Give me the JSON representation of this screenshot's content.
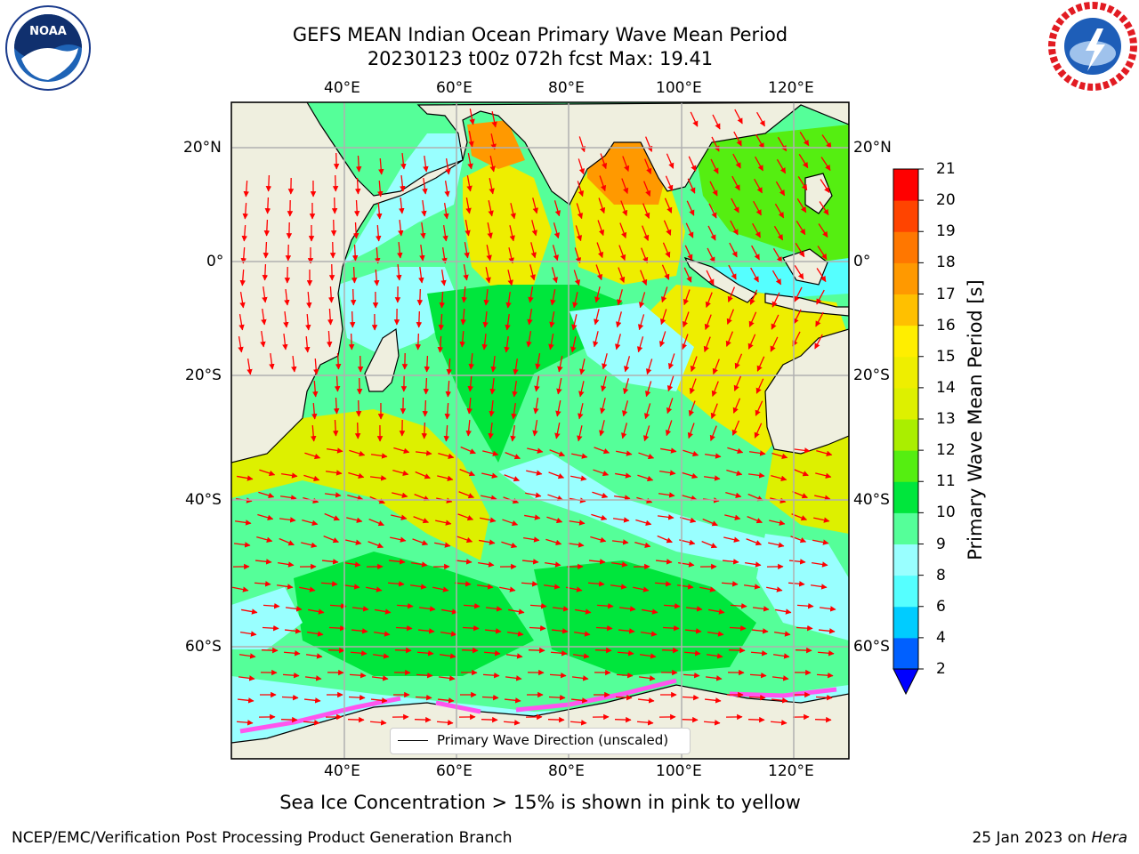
{
  "title": {
    "line1": "GEFS MEAN Indian Ocean Primary Wave Mean Period",
    "line2": "20230123 t00z 072h fcst   Max: 19.41"
  },
  "logos": {
    "left": {
      "text": "NOAA",
      "icon": "noaa-logo"
    },
    "right": {
      "icon": "national-weather-service-logo"
    }
  },
  "map": {
    "lon_labels": [
      "40°E",
      "60°E",
      "80°E",
      "100°E",
      "120°E"
    ],
    "lat_labels": [
      "20°N",
      "0°",
      "20°S",
      "40°S",
      "60°S"
    ],
    "gridlines": true,
    "land_color": "#efefdf",
    "arrow_color": "#ff0000",
    "legend": {
      "label": "Primary Wave Direction (unscaled)",
      "placement": "bottom-center"
    }
  },
  "colorbar": {
    "label": "Primary Wave Mean Period [s]",
    "ticks": [
      "2",
      "4",
      "6",
      "8",
      "9",
      "10",
      "11",
      "12",
      "13",
      "14",
      "15",
      "16",
      "17",
      "18",
      "19",
      "20",
      "21"
    ],
    "colors": [
      "#0060ff",
      "#00ccff",
      "#55ffff",
      "#99ffff",
      "#55ff99",
      "#00e63c",
      "#55ee11",
      "#aaee00",
      "#ddf000",
      "#eeee00",
      "#ffee00",
      "#ffc000",
      "#ff9900",
      "#ff7700",
      "#ff4400",
      "#ff0000"
    ],
    "under_color": "#0000ff"
  },
  "subnote": "Sea Ice Concentration > 15% is shown in pink to yellow",
  "footer": {
    "left": "NCEP/EMC/Verification Post Processing Product Generation Branch",
    "date": "25 Jan 2023 on ",
    "machine": "Hera"
  }
}
